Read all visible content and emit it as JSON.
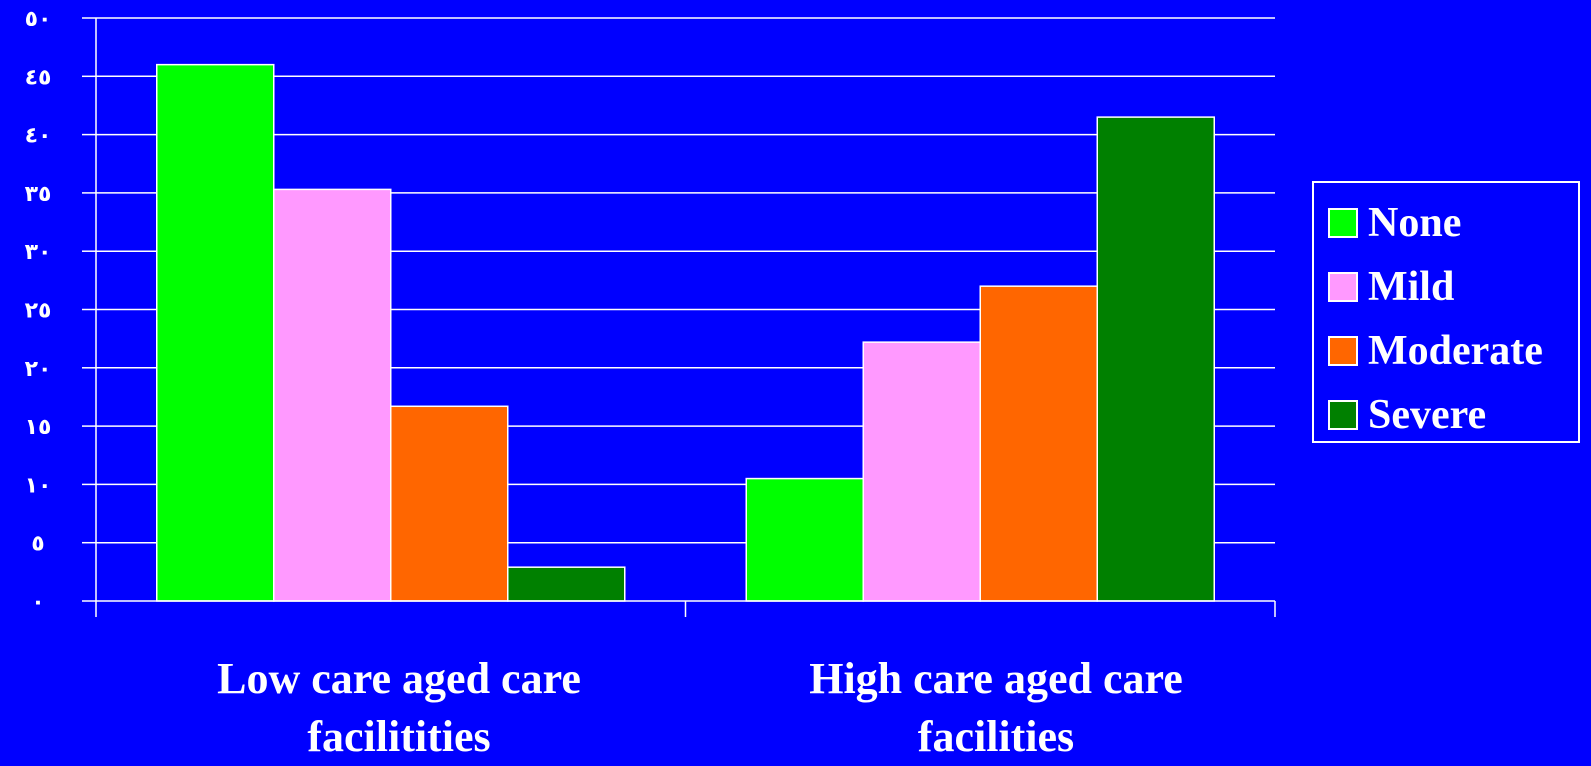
{
  "chart_data": {
    "type": "bar",
    "categories": [
      "Low care aged care facilitities",
      "High care aged care facilities"
    ],
    "series": [
      {
        "name": "None",
        "color": "#00ff00",
        "values": [
          46,
          10.5
        ]
      },
      {
        "name": "Mild",
        "color": "#ff99ff",
        "values": [
          35.3,
          22.2
        ]
      },
      {
        "name": "Moderate",
        "color": "#ff6600",
        "values": [
          16.7,
          27
        ]
      },
      {
        "name": "Severe",
        "color": "#008000",
        "values": [
          2.9,
          41.5
        ]
      }
    ],
    "ylim": [
      0,
      50
    ],
    "yticks": [
      0,
      5,
      10,
      15,
      20,
      25,
      30,
      35,
      40,
      45,
      50
    ],
    "ytick_labels": [
      "٠",
      "٥",
      "١٠",
      "١٥",
      "٢٠",
      "٢٥",
      "٣٠",
      "٣٥",
      "٤٠",
      "٤٥",
      "٥٠"
    ],
    "grid": true,
    "legend_position": "right",
    "background": "#0000ff"
  }
}
